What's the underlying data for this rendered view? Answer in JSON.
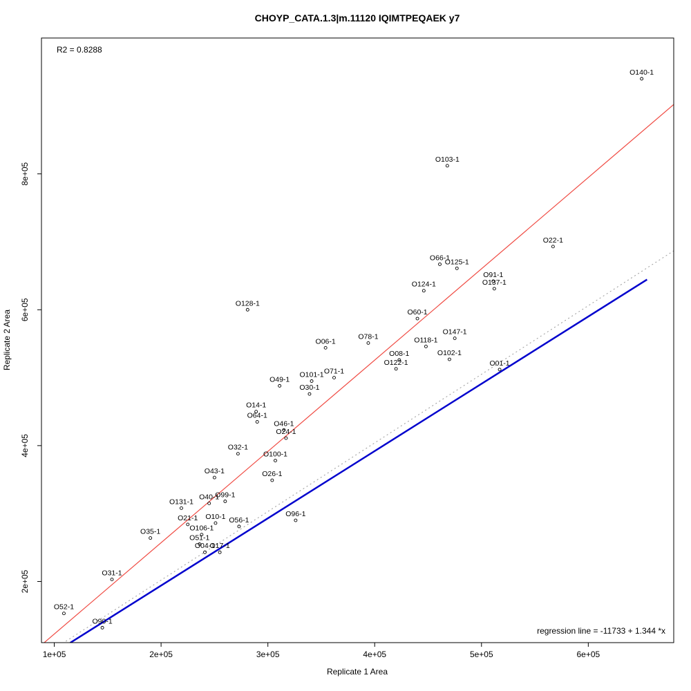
{
  "chart_data": {
    "type": "scatter",
    "title": "CHOYP_CATA.1.3|m.11120 IQIMTPEQAEK y7",
    "xlabel": "Replicate 1 Area",
    "ylabel": "Replicate 2 Area",
    "r2_label": "R2 = 0.8288",
    "regression_label": "regression line = -11733 + 1.344 *x",
    "r_squared": 0.8288,
    "regression": {
      "intercept": -11733,
      "slope": 1.344
    },
    "xlim": [
      88000,
      680000
    ],
    "ylim": [
      110000,
      1000000
    ],
    "x_ticks": [
      100000,
      200000,
      300000,
      400000,
      500000,
      600000
    ],
    "x_tick_labels": [
      "1e+05",
      "2e+05",
      "3e+05",
      "4e+05",
      "5e+05",
      "6e+05"
    ],
    "y_ticks": [
      200000,
      400000,
      600000,
      800000
    ],
    "y_tick_labels": [
      "2e+05",
      "4e+05",
      "6e+05",
      "8e+05"
    ],
    "grid": false,
    "colors": {
      "regression": "#f04a42",
      "identity_dotted": "#999999",
      "fit_blue": "#0000cd",
      "point": "#000000"
    },
    "lines": [
      {
        "name": "identity-dotted-line",
        "slope": 1.01,
        "intercept": 0,
        "color_key": "identity_dotted",
        "style": "dotted",
        "width": 1
      },
      {
        "name": "fit-blue-line",
        "slope": 0.99,
        "intercept": -4000,
        "color_key": "fit_blue",
        "style": "solid",
        "width": 2.5,
        "x_range": [
          115000,
          655000
        ]
      },
      {
        "name": "regression-line",
        "slope": 1.344,
        "intercept": -11733,
        "color_key": "regression",
        "style": "solid",
        "width": 1.2
      }
    ],
    "points": [
      {
        "label": "O140-1",
        "x": 650000,
        "y": 940000
      },
      {
        "label": "O103-1",
        "x": 468000,
        "y": 812000
      },
      {
        "label": "O22-1",
        "x": 567000,
        "y": 693000
      },
      {
        "label": "O66-1",
        "x": 461000,
        "y": 667000
      },
      {
        "label": "O125-1",
        "x": 477000,
        "y": 661000
      },
      {
        "label": "O91-1",
        "x": 511000,
        "y": 642000
      },
      {
        "label": "O137-1",
        "x": 512000,
        "y": 631000
      },
      {
        "label": "O124-1",
        "x": 446000,
        "y": 628000
      },
      {
        "label": "O128-1",
        "x": 281000,
        "y": 600000
      },
      {
        "label": "O60-1",
        "x": 440000,
        "y": 587000
      },
      {
        "label": "O147-1",
        "x": 475000,
        "y": 558000
      },
      {
        "label": "O78-1",
        "x": 394000,
        "y": 551000
      },
      {
        "label": "O06-1",
        "x": 354000,
        "y": 544000
      },
      {
        "label": "O118-1",
        "x": 448000,
        "y": 546000
      },
      {
        "label": "O08-1",
        "x": 423000,
        "y": 526000
      },
      {
        "label": "O102-1",
        "x": 470000,
        "y": 527000
      },
      {
        "label": "O122-1",
        "x": 420000,
        "y": 513000
      },
      {
        "label": "O01-1",
        "x": 517000,
        "y": 512000
      },
      {
        "label": "O71-1",
        "x": 362000,
        "y": 500000
      },
      {
        "label": "O101-1",
        "x": 341000,
        "y": 495000
      },
      {
        "label": "O49-1",
        "x": 311000,
        "y": 488000
      },
      {
        "label": "O30-1",
        "x": 339000,
        "y": 476000
      },
      {
        "label": "O14-1",
        "x": 289000,
        "y": 450000
      },
      {
        "label": "O64-1",
        "x": 290000,
        "y": 435000
      },
      {
        "label": "O46-1",
        "x": 315000,
        "y": 423000
      },
      {
        "label": "O24-1",
        "x": 317000,
        "y": 411000
      },
      {
        "label": "O32-1",
        "x": 272000,
        "y": 388000
      },
      {
        "label": "O100-1",
        "x": 307000,
        "y": 378000
      },
      {
        "label": "O43-1",
        "x": 250000,
        "y": 353000
      },
      {
        "label": "O26-1",
        "x": 304000,
        "y": 349000
      },
      {
        "label": "O99-1",
        "x": 260000,
        "y": 318000
      },
      {
        "label": "O40-1",
        "x": 245000,
        "y": 315000
      },
      {
        "label": "O131-1",
        "x": 219000,
        "y": 308000
      },
      {
        "label": "O96-1",
        "x": 326000,
        "y": 290000
      },
      {
        "label": "O10-1",
        "x": 251000,
        "y": 286000
      },
      {
        "label": "O21-1",
        "x": 225000,
        "y": 284000
      },
      {
        "label": "O56-1",
        "x": 273000,
        "y": 281000
      },
      {
        "label": "O106-1",
        "x": 238000,
        "y": 269000
      },
      {
        "label": "O35-1",
        "x": 190000,
        "y": 264000
      },
      {
        "label": "O51-1",
        "x": 236000,
        "y": 255000
      },
      {
        "label": "O04-1",
        "x": 241000,
        "y": 243000
      },
      {
        "label": "O17-1",
        "x": 255000,
        "y": 243000
      },
      {
        "label": "O31-1",
        "x": 154000,
        "y": 203000
      },
      {
        "label": "O52-1",
        "x": 109000,
        "y": 153000
      },
      {
        "label": "O90-1",
        "x": 145000,
        "y": 132000
      }
    ]
  }
}
